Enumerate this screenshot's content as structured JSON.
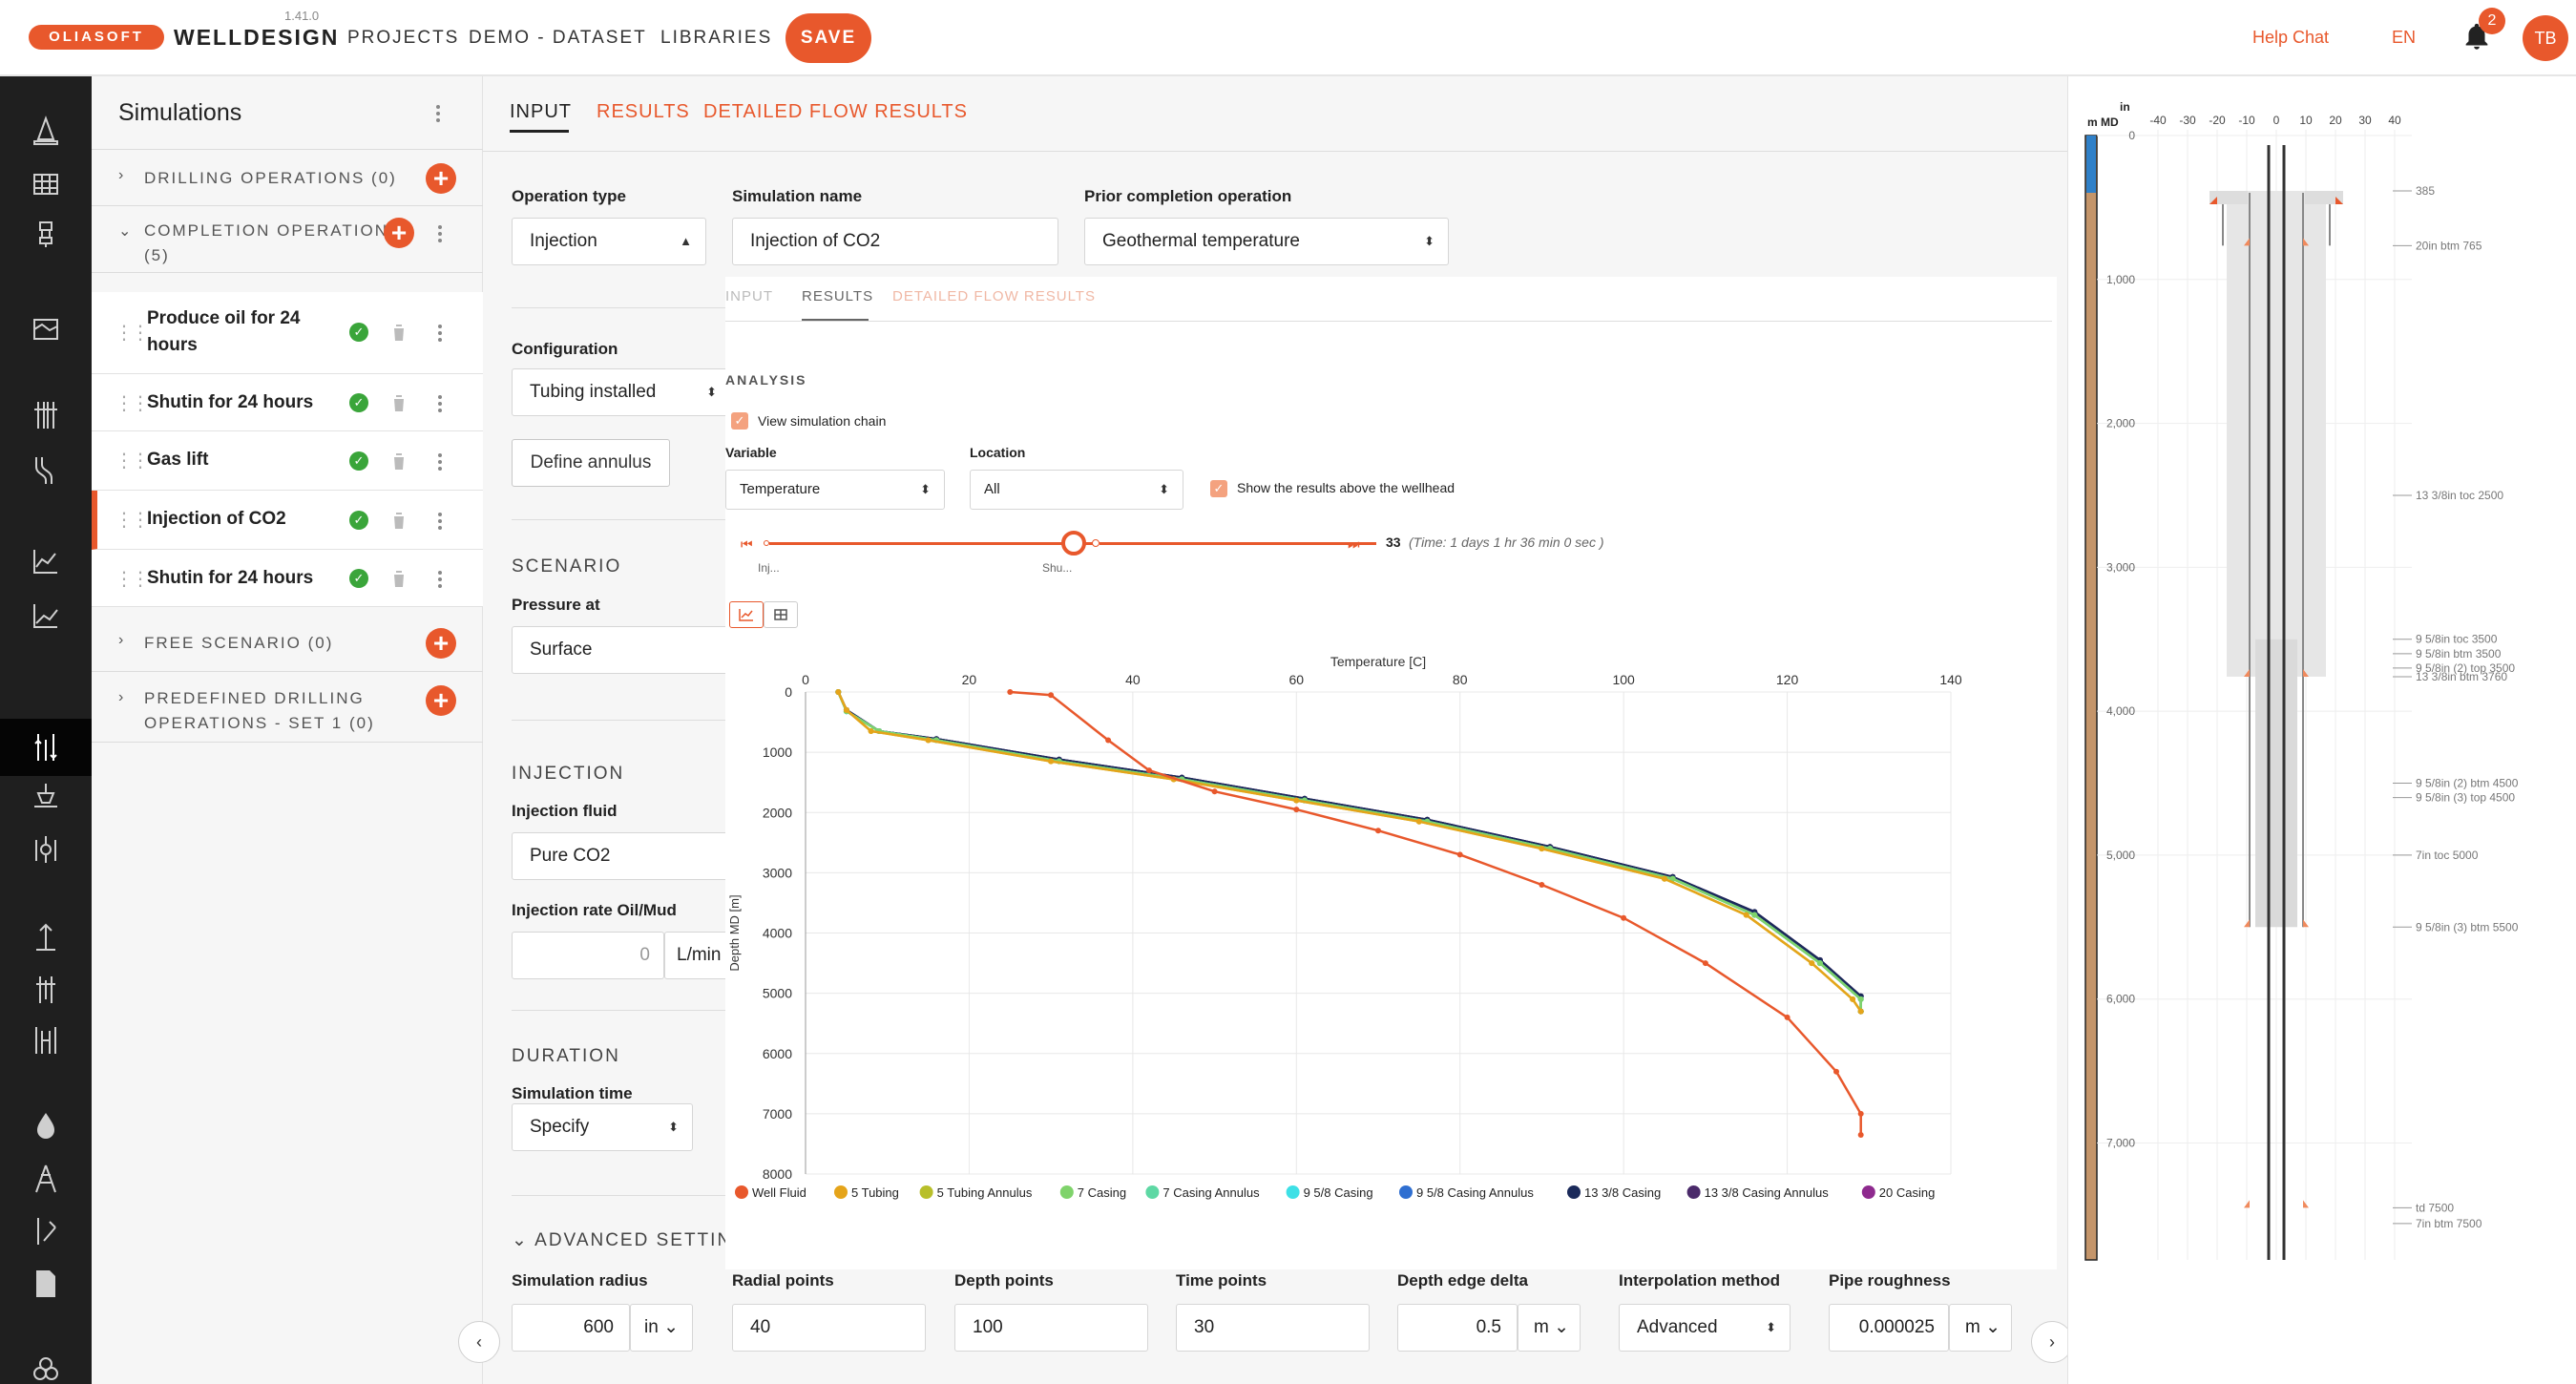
{
  "app": {
    "logo_text": "OLIASOFT",
    "product": "WELLDESIGN",
    "version": "1.41.0",
    "nav": [
      "PROJECTS",
      "DEMO - DATASET",
      "LIBRARIES"
    ],
    "save_label": "SAVE",
    "help_chat": "Help Chat",
    "language": "EN",
    "notification_count": "2",
    "user_initials": "TB",
    "accent_color": "#e8582c"
  },
  "sidebar": {
    "title": "Simulations",
    "sections": [
      {
        "label": "DRILLING OPERATIONS (0)"
      },
      {
        "label": "COMPLETION OPERATIONS",
        "count": "(5)"
      },
      {
        "label": "FREE SCENARIO (0)"
      },
      {
        "label": "PREDEFINED DRILLING",
        "label2": "OPERATIONS - SET 1 (0)"
      }
    ],
    "items": [
      {
        "line1": "Produce oil for 24",
        "line2": "hours"
      },
      {
        "line1": "Shutin for 24 hours"
      },
      {
        "line1": "Gas lift"
      },
      {
        "line1": "Injection of CO2"
      },
      {
        "line1": "Shutin for 24 hours"
      }
    ]
  },
  "tabs": [
    "INPUT",
    "RESULTS",
    "DETAILED FLOW RESULTS"
  ],
  "form": {
    "operation_type_label": "Operation type",
    "operation_type": "Injection",
    "simulation_name_label": "Simulation name",
    "simulation_name": "Injection of CO2",
    "prior_label": "Prior completion operation",
    "prior_value": "Geothermal temperature",
    "configuration_label": "Configuration",
    "configuration": "Tubing installed",
    "define_annulus": "Define annulus",
    "scenario_title": "SCENARIO",
    "pressure_at_label": "Pressure at",
    "pressure_at": "Surface",
    "injection_title": "INJECTION",
    "injection_fluid_label": "Injection fluid",
    "injection_fluid": "Pure CO2",
    "injection_rate_label": "Injection rate Oil/Mud",
    "injection_rate": "0",
    "injection_rate_unit": "L/min",
    "duration_title": "DURATION",
    "simulation_time_label": "Simulation time",
    "simulation_time": "Specify",
    "advanced_title": "ADVANCED SETTINGS",
    "simulation_radius_label": "Simulation radius",
    "simulation_radius": "600",
    "simulation_radius_unit": "in",
    "radial_points_label": "Radial points",
    "radial_points": "40",
    "depth_points_label": "Depth points",
    "depth_points": "100",
    "time_points_label": "Time points",
    "time_points": "30",
    "depth_edge_label": "Depth edge delta",
    "depth_edge": "0.5",
    "depth_edge_unit": "m",
    "interp_label": "Interpolation method",
    "interp": "Advanced",
    "roughness_label": "Pipe roughness",
    "roughness": "0.000025",
    "roughness_unit": "m"
  },
  "results": {
    "subtabs": [
      "INPUT",
      "RESULTS",
      "DETAILED FLOW RESULTS"
    ],
    "analysis_title": "ANALYSIS",
    "view_chain": "View simulation chain",
    "variable_label": "Variable",
    "variable": "Temperature",
    "location_label": "Location",
    "location": "All",
    "show_above": "Show the results above the wellhead",
    "time_step": "33",
    "time_text": "(Time: 1 days 1 hr 36 min 0 sec )",
    "slider_start": "Inj...",
    "slider_mid": "Shu..."
  },
  "chart_data": {
    "type": "line",
    "title": "Temperature [C]",
    "xlabel": "Temperature [C]",
    "ylabel": "Depth MD [m]",
    "xlim": [
      0,
      140
    ],
    "ylim": [
      8000,
      0
    ],
    "xticks": [
      "0",
      "20",
      "40",
      "60",
      "80",
      "100",
      "120",
      "140"
    ],
    "yticks": [
      "0",
      "1000",
      "2000",
      "3000",
      "4000",
      "5000",
      "6000",
      "7000",
      "8000"
    ],
    "grid": true,
    "legend_position": "bottom",
    "series": [
      {
        "name": "Well Fluid",
        "color": "#e8582c",
        "points": [
          [
            25,
            0
          ],
          [
            30,
            50
          ],
          [
            37,
            800
          ],
          [
            42,
            1300
          ],
          [
            50,
            1650
          ],
          [
            60,
            1950
          ],
          [
            70,
            2300
          ],
          [
            80,
            2700
          ],
          [
            90,
            3200
          ],
          [
            100,
            3750
          ],
          [
            110,
            4500
          ],
          [
            120,
            5400
          ],
          [
            126,
            6300
          ],
          [
            129,
            7000
          ],
          [
            129,
            7350
          ]
        ]
      },
      {
        "name": "5 Tubing",
        "color": "#e5a41a",
        "points": [
          [
            4,
            0
          ],
          [
            5,
            300
          ],
          [
            8,
            650
          ],
          [
            15,
            800
          ],
          [
            30,
            1150
          ],
          [
            45,
            1450
          ],
          [
            60,
            1800
          ],
          [
            75,
            2150
          ],
          [
            90,
            2600
          ],
          [
            105,
            3100
          ],
          [
            115,
            3700
          ],
          [
            123,
            4500
          ],
          [
            128,
            5100
          ],
          [
            129,
            5300
          ]
        ]
      },
      {
        "name": "5 Tubing Annulus",
        "color": "#b8bf2a",
        "points": [
          [
            4,
            0
          ],
          [
            5,
            300
          ],
          [
            8,
            650
          ],
          [
            15,
            800
          ],
          [
            30,
            1150
          ],
          [
            45,
            1450
          ],
          [
            60,
            1800
          ],
          [
            75,
            2150
          ],
          [
            90,
            2600
          ],
          [
            105,
            3100
          ],
          [
            115,
            3700
          ],
          [
            123,
            4500
          ],
          [
            128,
            5100
          ],
          [
            129,
            5300
          ]
        ]
      },
      {
        "name": "7 Casing",
        "color": "#7fd36b",
        "points": [
          [
            4,
            0
          ],
          [
            5,
            320
          ],
          [
            9,
            650
          ],
          [
            16,
            800
          ],
          [
            31,
            1150
          ],
          [
            46,
            1450
          ],
          [
            61,
            1800
          ],
          [
            76,
            2150
          ],
          [
            91,
            2600
          ],
          [
            106,
            3100
          ],
          [
            116,
            3700
          ],
          [
            124,
            4500
          ],
          [
            129,
            5100
          ],
          [
            129,
            5300
          ]
        ]
      },
      {
        "name": "7 Casing Annulus",
        "color": "#5ed8a4",
        "points": [
          [
            4,
            0
          ],
          [
            5,
            320
          ],
          [
            9,
            650
          ],
          [
            16,
            800
          ],
          [
            31,
            1150
          ],
          [
            46,
            1450
          ],
          [
            61,
            1800
          ],
          [
            76,
            2150
          ],
          [
            91,
            2600
          ],
          [
            106,
            3100
          ],
          [
            116,
            3700
          ],
          [
            124,
            4500
          ],
          [
            129,
            5100
          ],
          [
            129,
            5300
          ]
        ]
      },
      {
        "name": "9 5/8 Casing",
        "color": "#3ee0e6",
        "points": [
          [
            4,
            0
          ],
          [
            5,
            320
          ],
          [
            9,
            650
          ],
          [
            16,
            800
          ],
          [
            31,
            1150
          ],
          [
            46,
            1450
          ],
          [
            61,
            1800
          ],
          [
            76,
            2150
          ],
          [
            91,
            2600
          ],
          [
            106,
            3100
          ],
          [
            116,
            3700
          ],
          [
            124,
            4500
          ],
          [
            129,
            5100
          ],
          [
            129,
            5300
          ]
        ]
      },
      {
        "name": "9 5/8 Casing Annulus",
        "color": "#2f6fd1",
        "points": [
          [
            4,
            0
          ],
          [
            5,
            320
          ],
          [
            9,
            650
          ],
          [
            16,
            800
          ],
          [
            31,
            1150
          ],
          [
            46,
            1450
          ],
          [
            61,
            1800
          ],
          [
            76,
            2150
          ],
          [
            91,
            2600
          ],
          [
            106,
            3100
          ],
          [
            116,
            3700
          ],
          [
            124,
            4500
          ],
          [
            129,
            5100
          ],
          [
            129,
            5300
          ]
        ]
      },
      {
        "name": "13 3/8 Casing",
        "color": "#1b2a5a",
        "points": [
          [
            4,
            0
          ],
          [
            5,
            300
          ],
          [
            9,
            650
          ],
          [
            16,
            780
          ],
          [
            31,
            1120
          ],
          [
            46,
            1420
          ],
          [
            61,
            1770
          ],
          [
            76,
            2120
          ],
          [
            91,
            2570
          ],
          [
            106,
            3070
          ],
          [
            116,
            3650
          ],
          [
            124,
            4450
          ],
          [
            129,
            5050
          ],
          [
            129,
            5300
          ]
        ]
      },
      {
        "name": "13 3/8 Casing Annulus",
        "color": "#4a2a6a",
        "points": [
          [
            4,
            0
          ],
          [
            5,
            300
          ],
          [
            9,
            650
          ],
          [
            16,
            780
          ],
          [
            31,
            1120
          ],
          [
            46,
            1420
          ],
          [
            61,
            1770
          ],
          [
            76,
            2120
          ],
          [
            91,
            2570
          ],
          [
            106,
            3070
          ],
          [
            116,
            3650
          ],
          [
            124,
            4450
          ],
          [
            129,
            5050
          ],
          [
            129,
            5300
          ]
        ]
      },
      {
        "name": "20 Casing",
        "color": "#8e2a8e",
        "points": [
          [
            4,
            0
          ],
          [
            5,
            300
          ],
          [
            9,
            650
          ],
          [
            16,
            780
          ],
          [
            31,
            1120
          ],
          [
            46,
            1420
          ],
          [
            61,
            1770
          ],
          [
            76,
            2120
          ],
          [
            91,
            2570
          ],
          [
            106,
            3070
          ],
          [
            116,
            3650
          ],
          [
            124,
            4450
          ],
          [
            129,
            5050
          ],
          [
            129,
            5300
          ]
        ]
      }
    ]
  },
  "schematic": {
    "unit_md": "m MD",
    "unit_in": "in",
    "x_ticks": [
      "-40",
      "-30",
      "-20",
      "-10",
      "0",
      "10",
      "20",
      "30",
      "40"
    ],
    "depth_ticks": [
      "0",
      "1,000",
      "2,000",
      "3,000",
      "4,000",
      "5,000",
      "6,000",
      "7,000"
    ],
    "labels": [
      {
        "text": "385",
        "depth": 385
      },
      {
        "text": "20in btm 765",
        "depth": 765
      },
      {
        "text": "13 3/8in toc 2500",
        "depth": 2500
      },
      {
        "text": "9 5/8in toc 3500",
        "depth": 3500
      },
      {
        "text": "9 5/8in btm 3500",
        "depth": 3600
      },
      {
        "text": "9 5/8in (2) top 3500",
        "depth": 3700
      },
      {
        "text": "13 3/8in btm 3760",
        "depth": 3760
      },
      {
        "text": "9 5/8in (2) btm 4500",
        "depth": 4500
      },
      {
        "text": "9 5/8in (3) top 4500",
        "depth": 4600
      },
      {
        "text": "7in toc 5000",
        "depth": 5000
      },
      {
        "text": "9 5/8in (3) btm 5500",
        "depth": 5500
      },
      {
        "text": "td 7500",
        "depth": 7450
      },
      {
        "text": "7in btm 7500",
        "depth": 7560
      }
    ]
  }
}
